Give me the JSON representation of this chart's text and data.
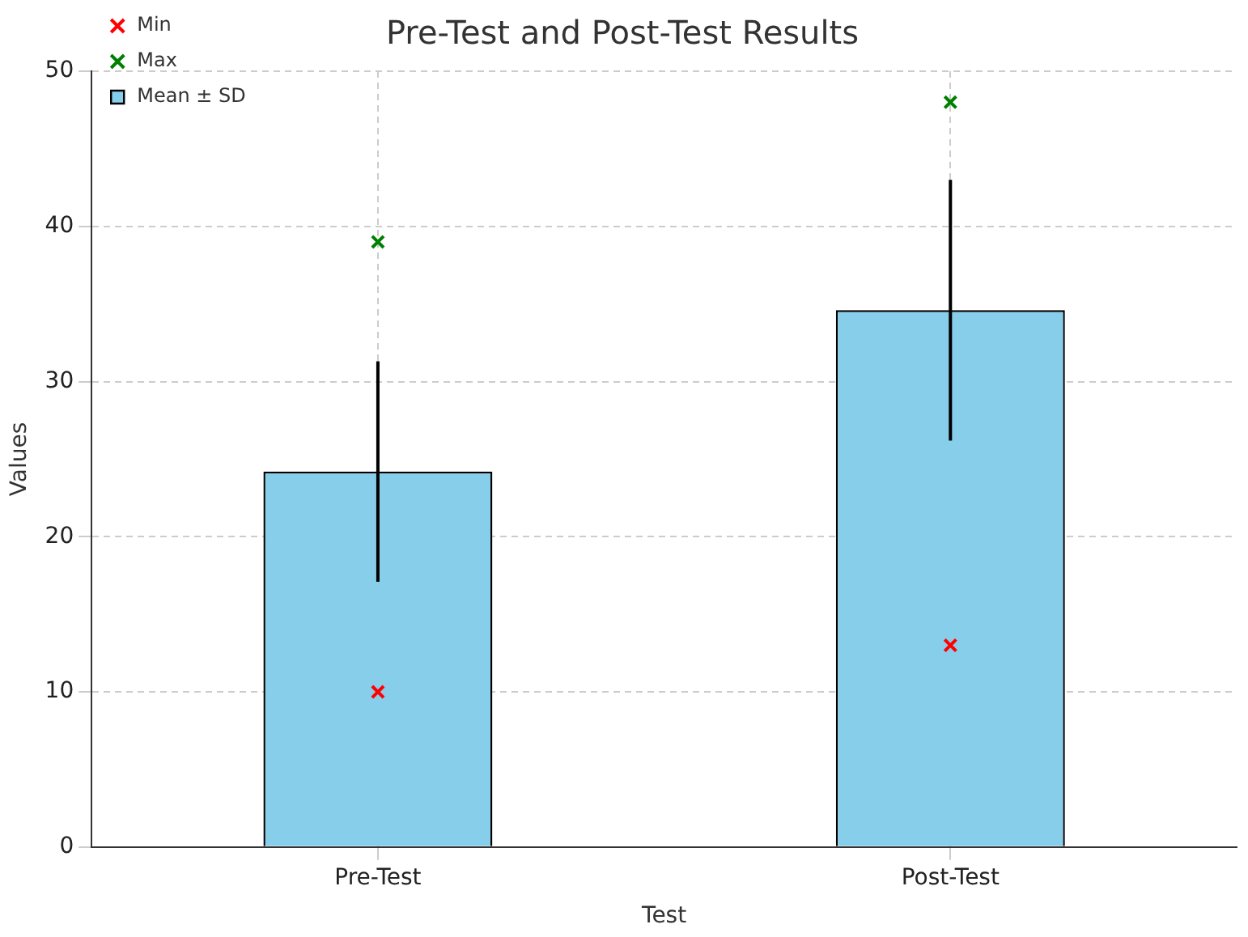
{
  "chart_data": {
    "type": "bar",
    "title": "Pre-Test and Post-Test Results",
    "xlabel": "Test",
    "ylabel": "Values",
    "categories": [
      "Pre-Test",
      "Post-Test"
    ],
    "ylim": [
      0,
      50
    ],
    "yticks": [
      0,
      10,
      20,
      30,
      40,
      50
    ],
    "grid": true,
    "legend": "top left",
    "series": [
      {
        "name": "Min",
        "type": "scatter",
        "marker": "cross",
        "color": "#ff0000",
        "x": [
          "Pre-Test",
          "Post-Test"
        ],
        "values": [
          10,
          13
        ]
      },
      {
        "name": "Max",
        "type": "scatter",
        "marker": "cross",
        "color": "#008000",
        "x": [
          "Pre-Test",
          "Post-Test"
        ],
        "values": [
          39,
          48
        ]
      },
      {
        "name": "Mean ± SD",
        "color": "#87ceeb",
        "values": [
          24.2,
          34.6
        ],
        "errors": [
          7.1,
          8.4
        ]
      }
    ]
  }
}
